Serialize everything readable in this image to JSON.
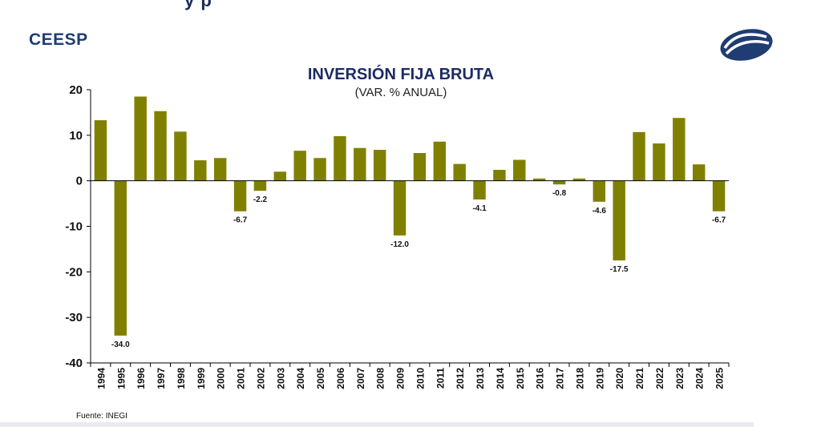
{
  "header": {
    "partial_text": "y                    p",
    "brand": "CEESP",
    "logo_icon": "ceesp-logo-icon"
  },
  "footer": {
    "source": "Fuente: INEGI"
  },
  "colors": {
    "bar": "#808000",
    "axis": "#000000",
    "title": "#1c2b63",
    "brand": "#1f3d73"
  },
  "chart_data": {
    "type": "bar",
    "title": "INVERSIÓN FIJA BRUTA",
    "subtitle": "(VAR. % ANUAL)",
    "xlabel": "",
    "ylabel": "",
    "ylim": [
      -40,
      20
    ],
    "yticks": [
      20,
      10,
      0,
      -10,
      -20,
      -30,
      -40
    ],
    "categories": [
      "1994",
      "1995",
      "1996",
      "1997",
      "1998",
      "1999",
      "2000",
      "2001",
      "2002",
      "2003",
      "2004",
      "2005",
      "2006",
      "2007",
      "2008",
      "2009",
      "2010",
      "2011",
      "2012",
      "2013",
      "2014",
      "2015",
      "2016",
      "2017",
      "2018",
      "2019",
      "2020",
      "2021",
      "2022",
      "2023",
      "2024",
      "2025"
    ],
    "values": [
      13.3,
      -34.0,
      18.5,
      15.3,
      10.8,
      4.5,
      5.0,
      -6.7,
      -2.2,
      2.0,
      6.6,
      5.0,
      9.8,
      7.2,
      6.8,
      -12.0,
      6.1,
      8.6,
      3.7,
      -4.1,
      2.4,
      4.6,
      0.5,
      -0.8,
      0.5,
      -4.6,
      -17.5,
      10.7,
      8.2,
      13.8,
      3.6,
      -6.7
    ],
    "labels": [
      {
        "index": 1,
        "text": "-34.0"
      },
      {
        "index": 7,
        "text": "-6.7"
      },
      {
        "index": 8,
        "text": "-2.2"
      },
      {
        "index": 15,
        "text": "-12.0"
      },
      {
        "index": 19,
        "text": "-4.1"
      },
      {
        "index": 23,
        "text": "-0.8"
      },
      {
        "index": 25,
        "text": "-4.6"
      },
      {
        "index": 26,
        "text": "-17.5"
      },
      {
        "index": 31,
        "text": "-6.7"
      }
    ]
  }
}
